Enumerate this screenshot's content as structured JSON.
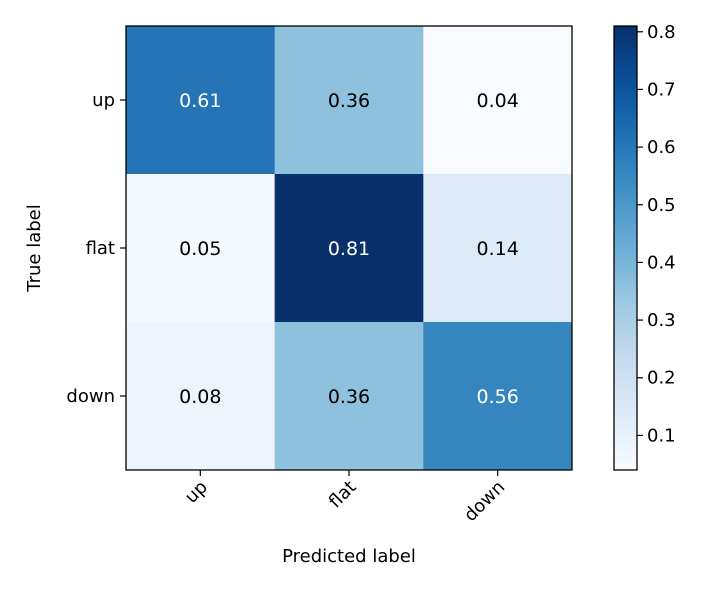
{
  "chart_data": {
    "type": "heatmap",
    "title": "",
    "xlabel": "Predicted label",
    "ylabel": "True label",
    "x_categories": [
      "up",
      "flat",
      "down"
    ],
    "y_categories": [
      "up",
      "flat",
      "down"
    ],
    "values": [
      [
        0.61,
        0.36,
        0.04
      ],
      [
        0.05,
        0.81,
        0.14
      ],
      [
        0.08,
        0.36,
        0.56
      ]
    ],
    "cell_labels": [
      [
        "0.61",
        "0.36",
        "0.04"
      ],
      [
        "0.05",
        "0.81",
        "0.14"
      ],
      [
        "0.08",
        "0.36",
        "0.56"
      ]
    ],
    "colormap": "Blues",
    "value_range": [
      0.04,
      0.81
    ],
    "colorbar": {
      "ticks": [
        0.1,
        0.2,
        0.3,
        0.4,
        0.5,
        0.6,
        0.7,
        0.8
      ],
      "tick_labels": [
        "0.1",
        "0.2",
        "0.3",
        "0.4",
        "0.5",
        "0.6",
        "0.7",
        "0.8"
      ]
    },
    "grid": false
  }
}
